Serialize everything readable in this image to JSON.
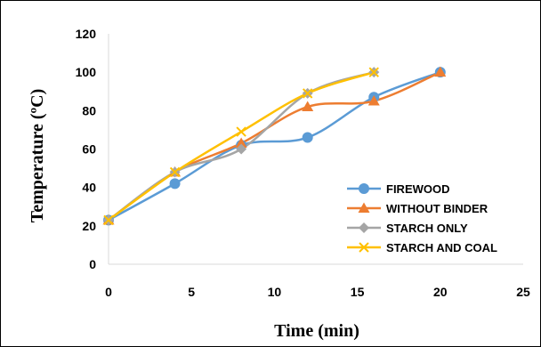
{
  "chart_data": {
    "type": "line",
    "title": "",
    "xlabel": "Time (min)",
    "ylabel": "Temperature (ºC)",
    "xlim": [
      0,
      25
    ],
    "ylim": [
      0,
      120
    ],
    "xticks": [
      0,
      5,
      10,
      15,
      20,
      25
    ],
    "yticks": [
      0,
      20,
      40,
      60,
      80,
      100,
      120
    ],
    "grid": false,
    "legend": "center-right",
    "series": [
      {
        "name": "FIREWOOD",
        "color": "#5B9BD5",
        "marker": "circle",
        "x": [
          0,
          4,
          8,
          12,
          16,
          20
        ],
        "y": [
          23,
          42,
          62,
          66,
          87,
          100
        ]
      },
      {
        "name": "WITHOUT BINDER",
        "color": "#ED7D31",
        "marker": "triangle",
        "x": [
          0,
          4,
          8,
          12,
          16,
          20
        ],
        "y": [
          23,
          48,
          63,
          82,
          85,
          100
        ]
      },
      {
        "name": "STARCH ONLY",
        "color": "#A5A5A5",
        "marker": "diamond",
        "x": [
          0,
          4,
          8,
          12,
          16
        ],
        "y": [
          23,
          48,
          60,
          89,
          100
        ]
      },
      {
        "name": "STARCH AND COAL",
        "color": "#FFC000",
        "marker": "x",
        "x": [
          0,
          4,
          8,
          12,
          16
        ],
        "y": [
          23,
          48,
          69,
          89,
          100
        ]
      }
    ]
  }
}
